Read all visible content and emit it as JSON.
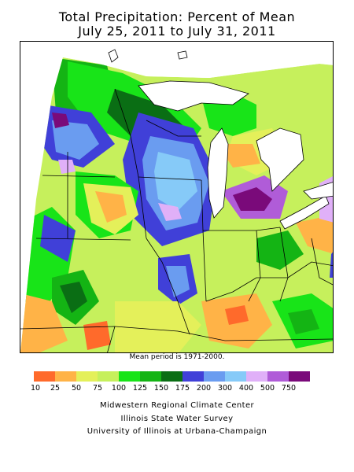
{
  "title": {
    "line1": "Total Precipitation: Percent of Mean",
    "line2": "July 25, 2011 to July 31, 2011"
  },
  "map": {
    "mean_period_note": "Mean period is 1971-2000."
  },
  "legend": {
    "ticks": [
      "10",
      "25",
      "50",
      "75",
      "100",
      "125",
      "150",
      "175",
      "200",
      "300",
      "400",
      "500",
      "750"
    ],
    "colors": [
      "#ff6a2b",
      "#ffb347",
      "#e4f05a",
      "#c6f05c",
      "#18e418",
      "#14b414",
      "#0a6e14",
      "#4040d8",
      "#6a9cf0",
      "#86caf8",
      "#e0b0f8",
      "#b05cd8",
      "#7a0a7a"
    ]
  },
  "credits": {
    "line1": "Midwestern Regional Climate Center",
    "line2": "Illinois State Water Survey",
    "line3": "University of Illinois at Urbana-Champaign"
  },
  "palette": {
    "orange_red": "#ff6a2b",
    "orange": "#ffb347",
    "yellow": "#e4f05a",
    "yellow_green": "#c6f05c",
    "light_green": "#18e418",
    "mid_green": "#14b414",
    "dark_green": "#0a6e14",
    "royal_blue": "#4040d8",
    "cornflower": "#6a9cf0",
    "light_blue": "#86caf8",
    "lavender": "#e0b0f8",
    "purple": "#b05cd8",
    "dark_purple": "#7a0a7a"
  }
}
